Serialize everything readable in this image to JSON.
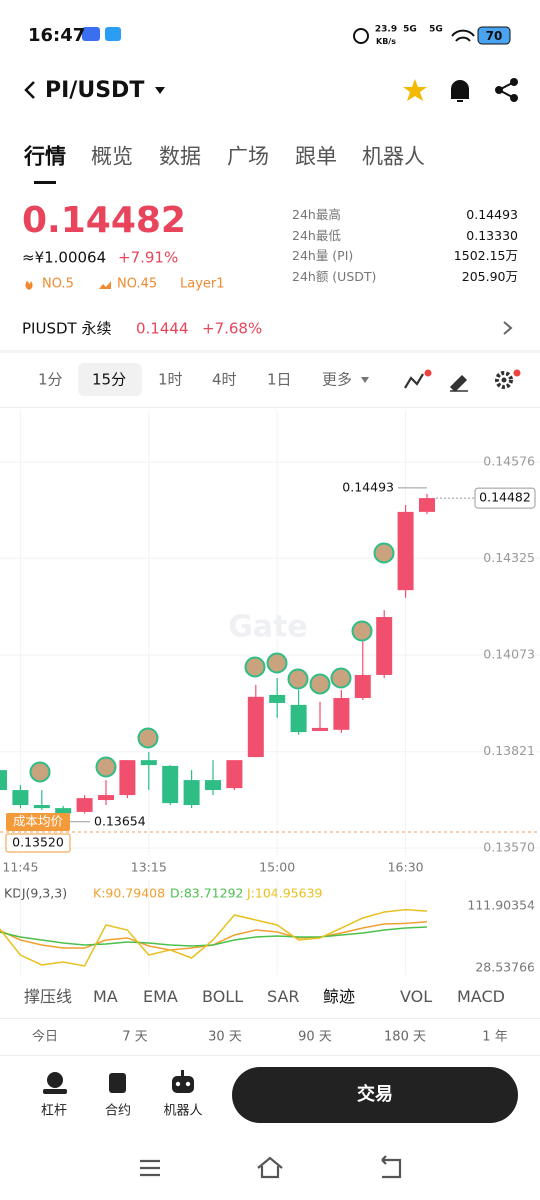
{
  "status_bar": {
    "time": "16:47",
    "speed": "23.9",
    "speed_unit": "KB/s",
    "net1": "5G",
    "net2": "5G",
    "battery": "70"
  },
  "header": {
    "pair": "PI/USDT"
  },
  "tabs": [
    "行情",
    "概览",
    "数据",
    "广场",
    "跟单",
    "机器人"
  ],
  "price": {
    "last": "0.14482",
    "cny": "≈¥1.00064",
    "change": "+7.91%",
    "badges": [
      "NO.5",
      "NO.45",
      "Layer1"
    ]
  },
  "stats": [
    {
      "label": "24h最高",
      "value": "0.14493"
    },
    {
      "label": "24h最低",
      "value": "0.13330"
    },
    {
      "label": "24h量 (PI)",
      "value": "1502.15万"
    },
    {
      "label": "24h额 (USDT)",
      "value": "205.90万"
    }
  ],
  "perp": {
    "name": "PIUSDT 永续",
    "price": "0.1444",
    "change": "+7.68%"
  },
  "intervals": [
    "1分",
    "15分",
    "1时",
    "4时",
    "1日",
    "更多"
  ],
  "kline": {
    "watermark": "Gate",
    "ylim": [
      0.1357,
      0.14576
    ],
    "yticks": [
      0.14576,
      0.14325,
      0.14073,
      0.13821,
      {
        "value": 0.1357,
        "label": "0.13570"
      }
    ],
    "up_color": "#f0506e",
    "down_color": "#2ebd85",
    "candles": [
      {
        "time": null,
        "open": 0.13773,
        "high": 0.1378,
        "low": 0.13715,
        "close": 0.13721
      },
      {
        "time": "11:45",
        "open": 0.13721,
        "high": 0.13734,
        "low": 0.13674,
        "close": 0.13682
      },
      {
        "time": null,
        "open": 0.13682,
        "high": 0.13721,
        "low": 0.13669,
        "close": 0.13674
      },
      {
        "time": null,
        "open": 0.13674,
        "high": 0.1368,
        "low": 0.13654,
        "close": 0.1366
      },
      {
        "time": null,
        "open": 0.13664,
        "high": 0.13708,
        "low": 0.1366,
        "close": 0.137
      },
      {
        "time": null,
        "open": 0.13695,
        "high": 0.13747,
        "low": 0.13682,
        "close": 0.13708
      },
      {
        "time": null,
        "open": 0.13708,
        "high": 0.13799,
        "low": 0.137,
        "close": 0.13799
      },
      {
        "time": "13:15",
        "open": 0.13799,
        "high": 0.1382,
        "low": 0.13721,
        "close": 0.13786
      },
      {
        "time": null,
        "open": 0.13784,
        "high": 0.13786,
        "low": 0.13682,
        "close": 0.13687
      },
      {
        "time": null,
        "open": 0.13747,
        "high": 0.13773,
        "low": 0.13674,
        "close": 0.13682
      },
      {
        "time": null,
        "open": 0.13747,
        "high": 0.13799,
        "low": 0.13708,
        "close": 0.13721
      },
      {
        "time": null,
        "open": 0.13726,
        "high": 0.13799,
        "low": 0.13721,
        "close": 0.13799
      },
      {
        "time": null,
        "open": 0.13807,
        "high": 0.13995,
        "low": 0.13807,
        "close": 0.13964
      },
      {
        "time": "15:00",
        "open": 0.13969,
        "high": 0.14013,
        "low": 0.13909,
        "close": 0.13948
      },
      {
        "time": null,
        "open": 0.13943,
        "high": 0.13982,
        "low": 0.13865,
        "close": 0.13872
      },
      {
        "time": null,
        "open": 0.13875,
        "high": 0.13951,
        "low": 0.13875,
        "close": 0.13883
      },
      {
        "time": null,
        "open": 0.13878,
        "high": 0.13982,
        "low": 0.1387,
        "close": 0.13961
      },
      {
        "time": null,
        "open": 0.13961,
        "high": 0.14112,
        "low": 0.13956,
        "close": 0.14021
      },
      {
        "time": null,
        "open": 0.14021,
        "high": 0.1419,
        "low": 0.14013,
        "close": 0.14172
      },
      {
        "time": "16:30",
        "open": 0.14242,
        "high": 0.14464,
        "low": 0.14222,
        "close": 0.14446
      },
      {
        "time": null,
        "open": 0.14446,
        "high": 0.14493,
        "low": 0.1444,
        "close": 0.14482
      }
    ],
    "high_label": "0.14493",
    "last_label": "0.14482",
    "low_label": "0.13654",
    "cost_label": "成本均价",
    "cost_value": "0.13520"
  },
  "kdj": {
    "title": "KDJ(9,3,3)",
    "ylim": [
      28.53766,
      111.90354
    ],
    "yticks": [
      111.90354,
      28.53766
    ],
    "series": [
      {
        "name": "K:90.79408",
        "color": "#f0a030",
        "values": [
          79.6,
          66.2,
          59.5,
          55.4,
          55.4,
          66.2,
          68.9,
          58.1,
          52.8,
          55.4,
          59.5,
          72.9,
          79.6,
          76.9,
          68.9,
          70.2,
          75.6,
          82.3,
          87.7,
          88.5,
          90.79408
        ]
      },
      {
        "name": "D:83.71292",
        "color": "#4cc04c",
        "values": [
          77.0,
          70.2,
          66.2,
          62.2,
          59.5,
          60.8,
          63.5,
          62.2,
          59.5,
          58.1,
          59.5,
          66.2,
          70.2,
          71.6,
          70.2,
          70.2,
          72.9,
          75.6,
          79.6,
          82.3,
          83.71292
        ]
      },
      {
        "name": "J:104.95639",
        "color": "#e8c020",
        "values": [
          82.3,
          46.0,
          32.6,
          36.6,
          31.3,
          86.4,
          79.6,
          46.0,
          52.8,
          42.0,
          66.2,
          99.8,
          93.1,
          86.4,
          66.2,
          68.9,
          82.3,
          95.8,
          103.8,
          107.0,
          104.95639
        ]
      }
    ]
  },
  "indicators": [
    "撑压线",
    "MA",
    "EMA",
    "BOLL",
    "SAR",
    "鲸迹",
    "VOL",
    "MACD"
  ],
  "ranges": [
    "今日",
    "7 天",
    "30 天",
    "90 天",
    "180 天",
    "1 年"
  ],
  "bottom": {
    "tools": [
      "杠杆",
      "合约",
      "机器人"
    ],
    "trade": "交易"
  }
}
